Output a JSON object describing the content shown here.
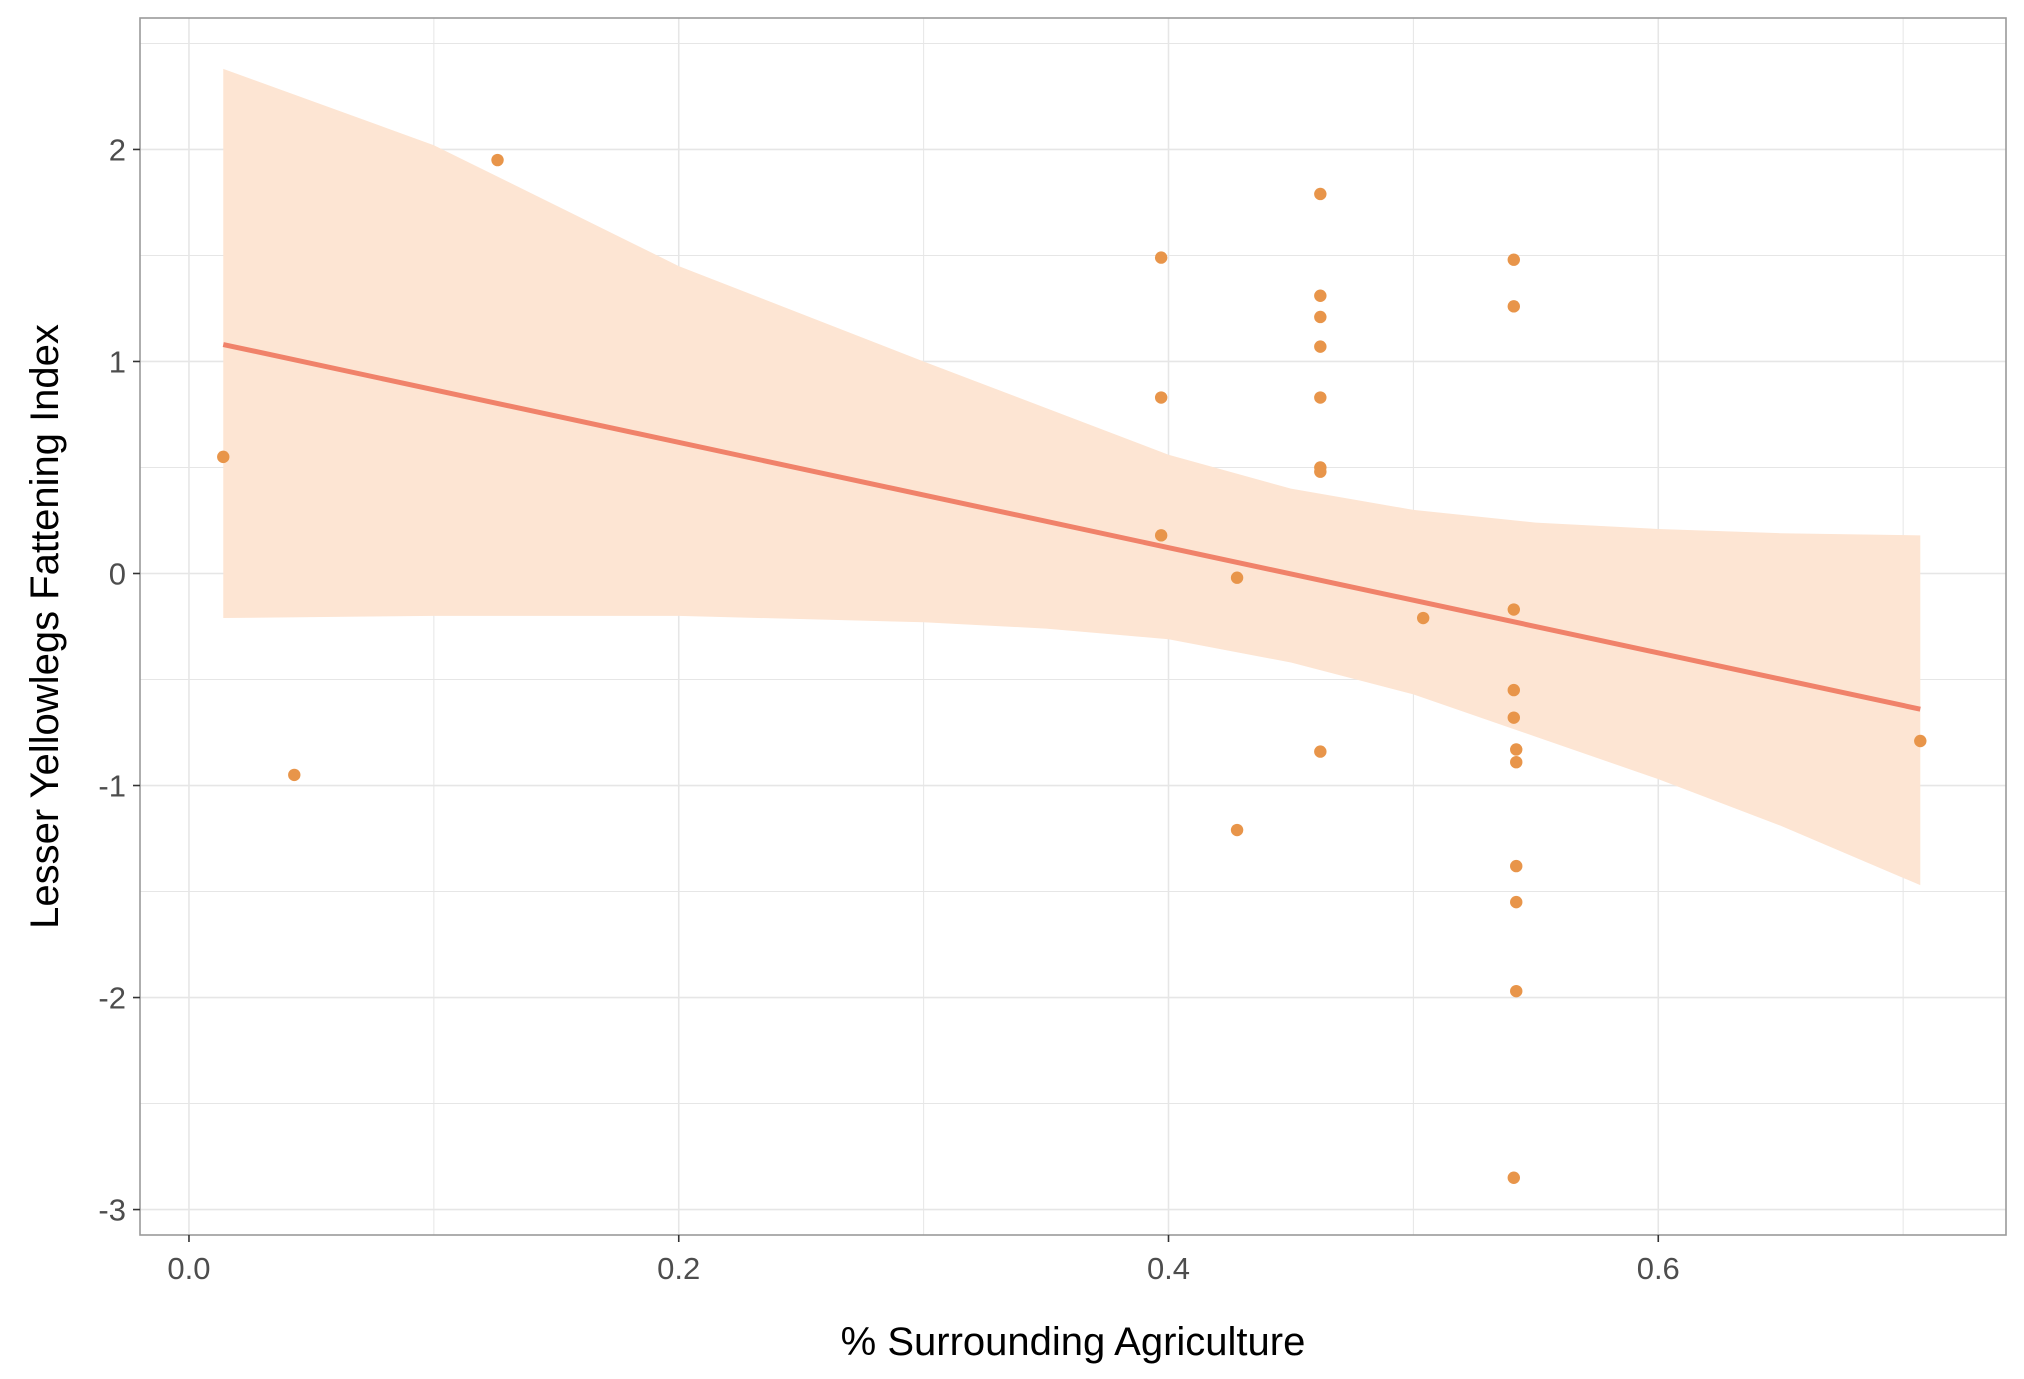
{
  "chart_data": {
    "type": "scatter",
    "title": "",
    "xlabel": "% Surrounding Agriculture",
    "ylabel": "Lesser Yellowlegs Fattening Index",
    "xlim": [
      -0.02,
      0.742
    ],
    "ylim": [
      -3.12,
      2.62
    ],
    "x_ticks": [
      0.0,
      0.2,
      0.4,
      0.6
    ],
    "x_tick_labels": [
      "0.0",
      "0.2",
      "0.4",
      "0.6"
    ],
    "y_ticks": [
      -3,
      -2,
      -1,
      0,
      1,
      2
    ],
    "y_tick_labels": [
      "-3",
      "-2",
      "-1",
      "0",
      "1",
      "2"
    ],
    "grid": true,
    "legend": "none",
    "colors": {
      "points": "#E8954A",
      "fit_line": "#F0826A",
      "confidence_band": "#FDE5D3",
      "grid": "#e6e6e6",
      "panel_border": "#9a9a9a"
    },
    "points": [
      {
        "x": 0.014,
        "y": 0.55
      },
      {
        "x": 0.043,
        "y": -0.95
      },
      {
        "x": 0.126,
        "y": 1.95
      },
      {
        "x": 0.397,
        "y": 1.49
      },
      {
        "x": 0.397,
        "y": 0.83
      },
      {
        "x": 0.397,
        "y": 0.18
      },
      {
        "x": 0.428,
        "y": -0.02
      },
      {
        "x": 0.428,
        "y": -1.21
      },
      {
        "x": 0.462,
        "y": 1.79
      },
      {
        "x": 0.462,
        "y": 1.31
      },
      {
        "x": 0.462,
        "y": 1.21
      },
      {
        "x": 0.462,
        "y": 1.07
      },
      {
        "x": 0.462,
        "y": 0.83
      },
      {
        "x": 0.462,
        "y": 0.5
      },
      {
        "x": 0.462,
        "y": 0.48
      },
      {
        "x": 0.462,
        "y": -0.84
      },
      {
        "x": 0.504,
        "y": -0.21
      },
      {
        "x": 0.541,
        "y": 1.48
      },
      {
        "x": 0.541,
        "y": 1.26
      },
      {
        "x": 0.541,
        "y": -0.17
      },
      {
        "x": 0.541,
        "y": -0.55
      },
      {
        "x": 0.541,
        "y": -0.68
      },
      {
        "x": 0.542,
        "y": -0.83
      },
      {
        "x": 0.542,
        "y": -0.89
      },
      {
        "x": 0.542,
        "y": -1.38
      },
      {
        "x": 0.542,
        "y": -1.55
      },
      {
        "x": 0.542,
        "y": -1.97
      },
      {
        "x": 0.541,
        "y": -2.85
      },
      {
        "x": 0.707,
        "y": -0.79
      }
    ],
    "fit_line": [
      {
        "x": 0.014,
        "y": 1.08
      },
      {
        "x": 0.707,
        "y": -0.64
      }
    ],
    "confidence_band": {
      "upper": [
        {
          "x": 0.014,
          "y": 2.38
        },
        {
          "x": 0.1,
          "y": 2.02
        },
        {
          "x": 0.2,
          "y": 1.45
        },
        {
          "x": 0.3,
          "y": 1.0
        },
        {
          "x": 0.4,
          "y": 0.56
        },
        {
          "x": 0.45,
          "y": 0.4
        },
        {
          "x": 0.5,
          "y": 0.3
        },
        {
          "x": 0.55,
          "y": 0.24
        },
        {
          "x": 0.6,
          "y": 0.21
        },
        {
          "x": 0.65,
          "y": 0.19
        },
        {
          "x": 0.707,
          "y": 0.18
        }
      ],
      "lower": [
        {
          "x": 0.014,
          "y": -0.21
        },
        {
          "x": 0.1,
          "y": -0.2
        },
        {
          "x": 0.2,
          "y": -0.2
        },
        {
          "x": 0.3,
          "y": -0.23
        },
        {
          "x": 0.35,
          "y": -0.26
        },
        {
          "x": 0.4,
          "y": -0.31
        },
        {
          "x": 0.45,
          "y": -0.42
        },
        {
          "x": 0.5,
          "y": -0.57
        },
        {
          "x": 0.55,
          "y": -0.77
        },
        {
          "x": 0.6,
          "y": -0.97
        },
        {
          "x": 0.65,
          "y": -1.19
        },
        {
          "x": 0.707,
          "y": -1.47
        }
      ]
    }
  }
}
